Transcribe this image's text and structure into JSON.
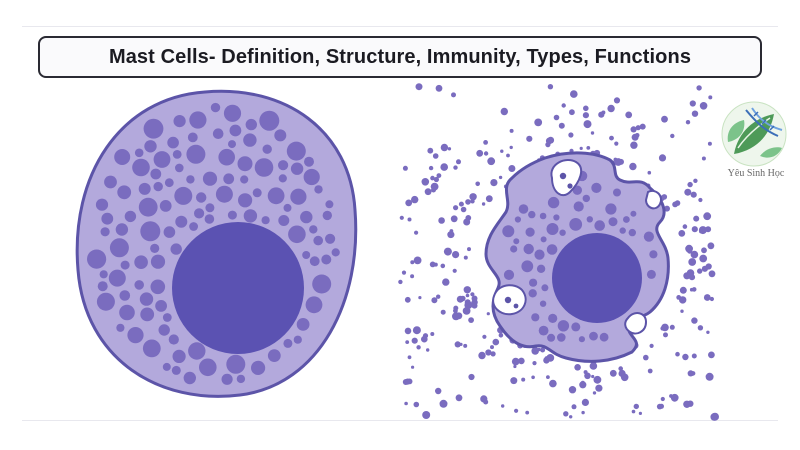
{
  "title": "Mast Cells- Definition, Structure, Immunity, Types, Functions",
  "logo": {
    "caption": "Yêu Sinh Học",
    "icon": "dna-leaf-logo-icon"
  },
  "colors": {
    "cytoplasm": "#b3a9dc",
    "membrane": "#5c54a8",
    "granule": "#7a6cbf",
    "nucleus": "#5b52b2",
    "vacuole": "#ffffff",
    "title_border": "#2a2a33"
  },
  "panels": {
    "left": {
      "cell": "resting-mast-cell"
    },
    "right": {
      "cell": "degranulating-mast-cell"
    }
  }
}
